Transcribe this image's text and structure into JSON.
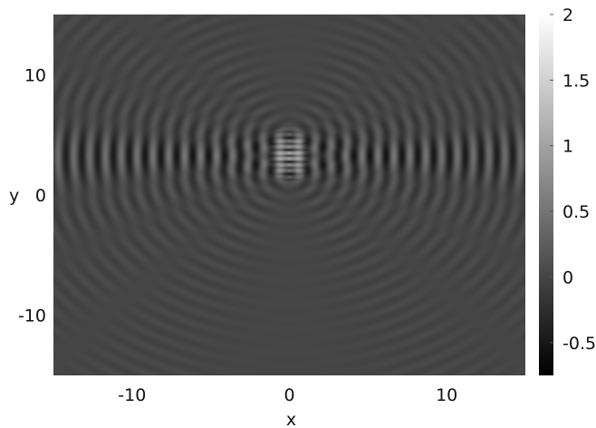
{
  "chart_data": {
    "type": "heatmap",
    "title": "",
    "xlabel": "x",
    "ylabel": "y",
    "xlim": [
      -15,
      15
    ],
    "ylim": [
      -15,
      15
    ],
    "x_ticks": [
      -10,
      0,
      10
    ],
    "x_tick_labels": [
      "-10",
      "0",
      "10"
    ],
    "y_ticks": [
      10,
      0,
      -10
    ],
    "y_tick_labels": [
      "10",
      "0",
      "-10"
    ],
    "colorbar": {
      "range": [
        -0.75,
        2
      ],
      "ticks": [
        2,
        1.5,
        1,
        0.5,
        0,
        -0.5
      ],
      "tick_labels": [
        "2",
        "1.5",
        "1",
        "0.5",
        "0",
        "-0.5"
      ],
      "colormap": "grayscale"
    },
    "field": {
      "description_of_values": "interference pattern of circular waves radiating from a vertical line of point sources on the y-axis",
      "background_value": 0,
      "source_x": 0,
      "source_y_range": [
        1.5,
        5
      ],
      "peak_value": 2,
      "min_value": -0.7,
      "wavelength": 1
    },
    "grid": false,
    "colors": {
      "background": "#ffffff",
      "axis_text": "#111111",
      "colormap_low": "#000000",
      "colormap_high": "#ffffff"
    }
  }
}
